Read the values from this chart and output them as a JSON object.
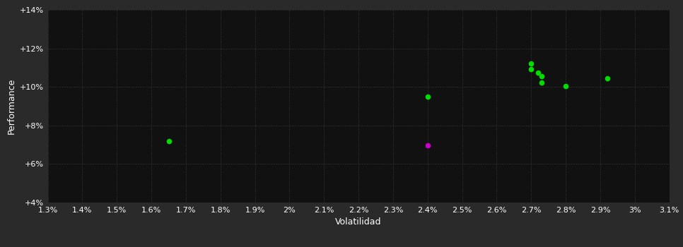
{
  "background_color": "#111111",
  "plot_bg_color": "#111111",
  "outer_bg_color": "#2a2a2a",
  "grid_color": "#404040",
  "text_color": "#ffffff",
  "xlabel": "Volatilidad",
  "ylabel": "Performance",
  "xlim": [
    0.013,
    0.031
  ],
  "ylim": [
    0.04,
    0.14
  ],
  "xticks": [
    0.013,
    0.014,
    0.015,
    0.016,
    0.017,
    0.018,
    0.019,
    0.02,
    0.021,
    0.022,
    0.023,
    0.024,
    0.025,
    0.026,
    0.027,
    0.028,
    0.029,
    0.03,
    0.031
  ],
  "yticks": [
    0.04,
    0.06,
    0.08,
    0.1,
    0.12,
    0.14
  ],
  "green_points": [
    [
      0.0165,
      0.072
    ],
    [
      0.024,
      0.0948
    ],
    [
      0.027,
      0.112
    ],
    [
      0.027,
      0.1092
    ],
    [
      0.0272,
      0.1075
    ],
    [
      0.0273,
      0.1055
    ],
    [
      0.0273,
      0.1022
    ],
    [
      0.028,
      0.1005
    ],
    [
      0.0292,
      0.1045
    ]
  ],
  "magenta_points": [
    [
      0.024,
      0.0695
    ]
  ],
  "point_size": 30,
  "green_color": "#00dd00",
  "magenta_color": "#cc00cc",
  "xlabel_fontsize": 9,
  "ylabel_fontsize": 9,
  "tick_fontsize": 8
}
